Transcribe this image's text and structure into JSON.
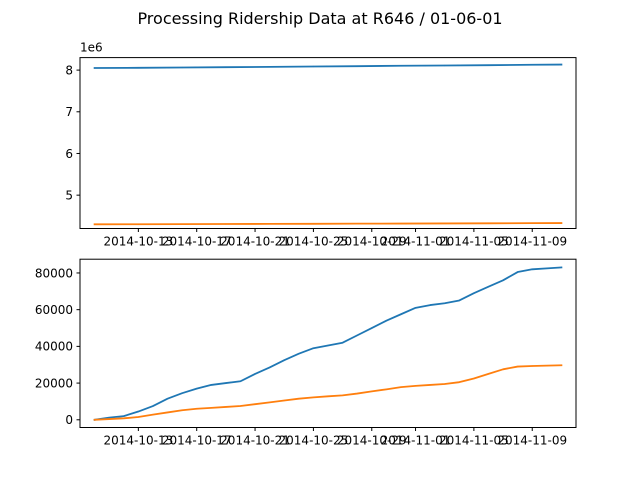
{
  "chart_data": [
    {
      "type": "line",
      "title": "Processing Ridership Data at R646 / 01-06-01",
      "x_type": "date",
      "xlim": [
        "2014-10-09",
        "2014-11-12"
      ],
      "xticks": [
        "2014-10-13",
        "2014-10-17",
        "2014-10-21",
        "2014-10-25",
        "2014-10-29",
        "2014-11-01",
        "2014-11-05",
        "2014-11-09"
      ],
      "xtick_labels": [
        "2014-10-13",
        "2014-10-17",
        "2014-10-21",
        "2014-10-25",
        "2014-10-29",
        "2014-11-01",
        "2014-11-05",
        "2014-11-09"
      ],
      "ylim": [
        4200000,
        8300000
      ],
      "yticks": [
        5000000,
        6000000,
        7000000,
        8000000
      ],
      "ytick_labels": [
        "5",
        "6",
        "7",
        "8"
      ],
      "offset_text": "1e6",
      "grid": false,
      "series": [
        {
          "color": "#1f77b4",
          "x": [
            "2014-10-10",
            "2014-10-13",
            "2014-10-16",
            "2014-10-19",
            "2014-10-22",
            "2014-10-25",
            "2014-10-28",
            "2014-10-31",
            "2014-11-03",
            "2014-11-06",
            "2014-11-09",
            "2014-11-11"
          ],
          "y": [
            8050000,
            8055000,
            8062000,
            8070000,
            8078000,
            8086000,
            8094000,
            8104000,
            8110000,
            8118000,
            8128000,
            8133000
          ]
        },
        {
          "color": "#ff7f0e",
          "x": [
            "2014-10-10",
            "2014-10-13",
            "2014-10-16",
            "2014-10-19",
            "2014-10-22",
            "2014-10-25",
            "2014-10-28",
            "2014-10-31",
            "2014-11-03",
            "2014-11-06",
            "2014-11-09",
            "2014-11-11"
          ],
          "y": [
            4300000,
            4302000,
            4305000,
            4308000,
            4311000,
            4313000,
            4316000,
            4319000,
            4321000,
            4324000,
            4328000,
            4330000
          ]
        }
      ]
    },
    {
      "type": "line",
      "x_type": "date",
      "xlim": [
        "2014-10-09",
        "2014-11-12"
      ],
      "xticks": [
        "2014-10-13",
        "2014-10-17",
        "2014-10-21",
        "2014-10-25",
        "2014-10-29",
        "2014-11-01",
        "2014-11-05",
        "2014-11-09"
      ],
      "xtick_labels": [
        "2014-10-13",
        "2014-10-17",
        "2014-10-21",
        "2014-10-25",
        "2014-10-29",
        "2014-11-01",
        "2014-11-05",
        "2014-11-09"
      ],
      "ylim": [
        -4200,
        87500
      ],
      "yticks": [
        0,
        20000,
        40000,
        60000,
        80000
      ],
      "ytick_labels": [
        "0",
        "20000",
        "40000",
        "60000",
        "80000"
      ],
      "grid": false,
      "series": [
        {
          "color": "#1f77b4",
          "x": [
            "2014-10-10",
            "2014-10-11",
            "2014-10-12",
            "2014-10-13",
            "2014-10-14",
            "2014-10-15",
            "2014-10-16",
            "2014-10-17",
            "2014-10-18",
            "2014-10-19",
            "2014-10-20",
            "2014-10-21",
            "2014-10-22",
            "2014-10-23",
            "2014-10-24",
            "2014-10-25",
            "2014-10-26",
            "2014-10-27",
            "2014-10-28",
            "2014-10-29",
            "2014-10-30",
            "2014-10-31",
            "2014-11-01",
            "2014-11-02",
            "2014-11-03",
            "2014-11-04",
            "2014-11-05",
            "2014-11-06",
            "2014-11-07",
            "2014-11-08",
            "2014-11-09",
            "2014-11-10",
            "2014-11-11"
          ],
          "y": [
            0,
            1200,
            2000,
            4500,
            7500,
            11500,
            14500,
            17000,
            19000,
            20000,
            21000,
            25000,
            28500,
            32500,
            36000,
            39000,
            40500,
            42000,
            46000,
            50000,
            54000,
            57500,
            61000,
            62500,
            63500,
            65000,
            69000,
            72500,
            76000,
            80500,
            82000,
            82500,
            83000
          ]
        },
        {
          "color": "#ff7f0e",
          "x": [
            "2014-10-10",
            "2014-10-11",
            "2014-10-12",
            "2014-10-13",
            "2014-10-14",
            "2014-10-15",
            "2014-10-16",
            "2014-10-17",
            "2014-10-18",
            "2014-10-19",
            "2014-10-20",
            "2014-10-21",
            "2014-10-22",
            "2014-10-23",
            "2014-10-24",
            "2014-10-25",
            "2014-10-26",
            "2014-10-27",
            "2014-10-28",
            "2014-10-29",
            "2014-10-30",
            "2014-10-31",
            "2014-11-01",
            "2014-11-02",
            "2014-11-03",
            "2014-11-04",
            "2014-11-05",
            "2014-11-06",
            "2014-11-07",
            "2014-11-08",
            "2014-11-09",
            "2014-11-10",
            "2014-11-11"
          ],
          "y": [
            0,
            400,
            800,
            1500,
            2800,
            4000,
            5200,
            6000,
            6500,
            7000,
            7500,
            8500,
            9500,
            10500,
            11500,
            12200,
            12800,
            13300,
            14300,
            15500,
            16600,
            17800,
            18500,
            19000,
            19500,
            20500,
            22500,
            25000,
            27500,
            29000,
            29300,
            29500,
            29700
          ]
        }
      ]
    }
  ]
}
